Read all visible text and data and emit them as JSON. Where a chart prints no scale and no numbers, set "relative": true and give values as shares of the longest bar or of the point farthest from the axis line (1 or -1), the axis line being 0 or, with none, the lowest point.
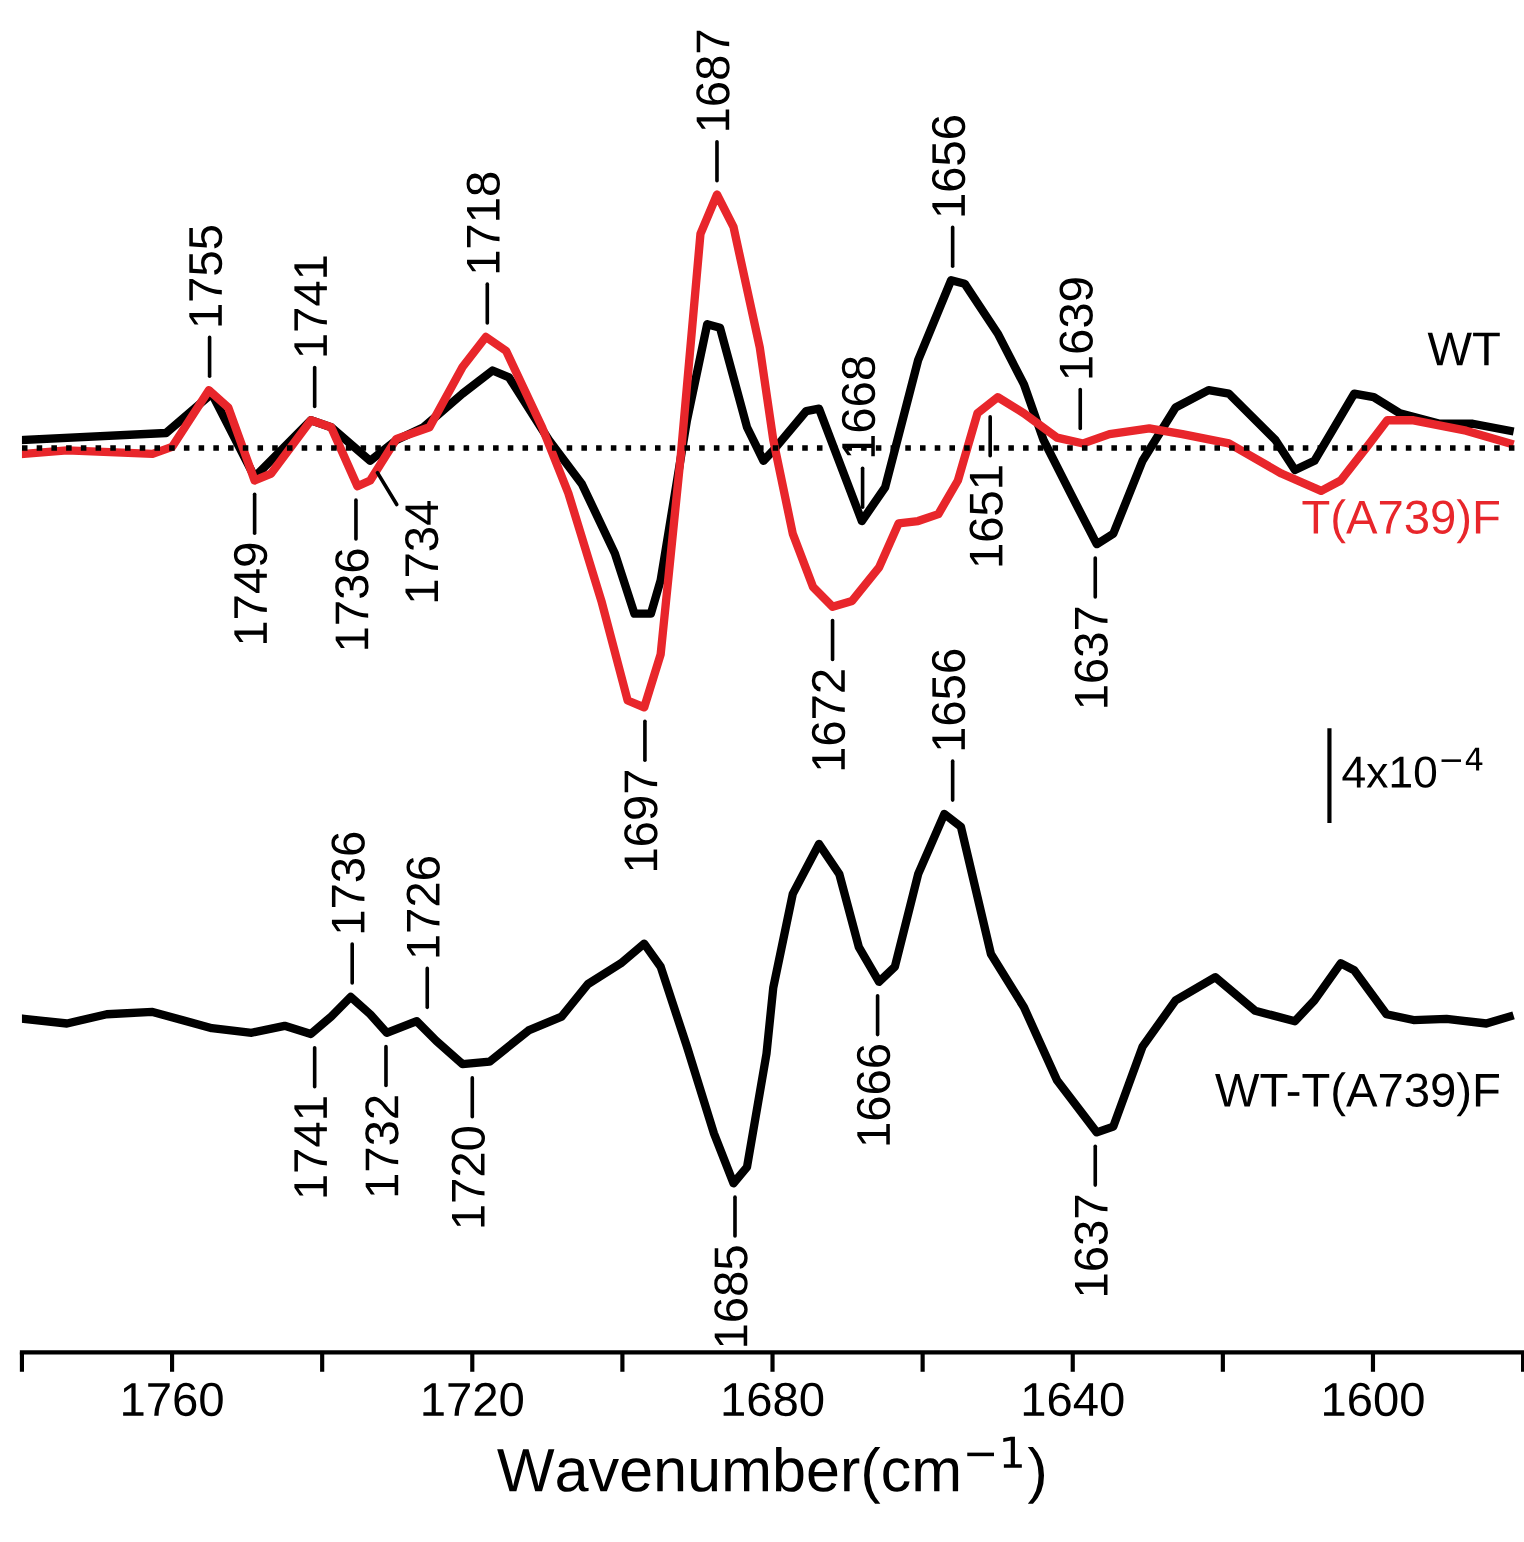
{
  "chart_data": {
    "type": "line",
    "relative": true,
    "xlabel": "Wavenumber(cm$^{−1}$)",
    "xlim": [
      1780,
      1580
    ],
    "xticks": [
      {
        "value": 1780,
        "label": null
      },
      1760,
      {
        "value": 1740,
        "label": null
      },
      1720,
      {
        "value": 1700,
        "label": null
      },
      1680,
      {
        "value": 1660,
        "label": null
      },
      1640,
      {
        "value": 1620,
        "label": null
      },
      1600,
      {
        "value": 1580,
        "label": null
      }
    ],
    "tick_labels": "x",
    "grid": false,
    "marker": "none",
    "line_style": "solid",
    "ref_lines": [
      {
        "axis": "y",
        "value": 0.781,
        "color": "#000000",
        "line_style": "dotted"
      }
    ],
    "series": [
      {
        "name": "WT",
        "color": "#000000",
        "x": [
          1779.7,
          1760.8,
          1754.7,
          1749.0,
          1741.5,
          1738.8,
          1733.6,
          1730.1,
          1726.5,
          1721.3,
          1717.3,
          1715.1,
          1709.8,
          1705.4,
          1701.0,
          1698.4,
          1696.2,
          1694.9,
          1691.4,
          1688.7,
          1687.0,
          1683.4,
          1681.2,
          1679.9,
          1675.5,
          1673.8,
          1668.1,
          1665.0,
          1660.6,
          1656.2,
          1654.4,
          1650.0,
          1646.5,
          1643.9,
          1640.3,
          1636.8,
          1634.6,
          1630.7,
          1626.3,
          1621.9,
          1619.2,
          1613.0,
          1610.4,
          1607.8,
          1602.5,
          1599.9,
          1596.4,
          1591.1,
          1586.7,
          1581.8
        ],
        "values": [
          0.788,
          0.794,
          0.828,
          0.756,
          0.805,
          0.799,
          0.77,
          0.788,
          0.799,
          0.828,
          0.848,
          0.842,
          0.788,
          0.75,
          0.69,
          0.638,
          0.638,
          0.667,
          0.805,
          0.888,
          0.885,
          0.799,
          0.77,
          0.779,
          0.813,
          0.815,
          0.718,
          0.747,
          0.857,
          0.926,
          0.923,
          0.88,
          0.836,
          0.788,
          0.742,
          0.698,
          0.707,
          0.77,
          0.816,
          0.831,
          0.828,
          0.788,
          0.762,
          0.77,
          0.828,
          0.825,
          0.811,
          0.802,
          0.802,
          0.796
        ]
      },
      {
        "name": "T(A739)F",
        "color": "#e8262b",
        "x": [
          1779.7,
          1774.0,
          1762.6,
          1760.0,
          1755.1,
          1752.5,
          1749.0,
          1746.8,
          1741.5,
          1738.8,
          1735.3,
          1733.6,
          1730.1,
          1725.7,
          1721.3,
          1718.2,
          1715.5,
          1710.7,
          1707.2,
          1702.8,
          1699.3,
          1697.1,
          1694.9,
          1692.2,
          1689.6,
          1687.4,
          1685.2,
          1681.7,
          1679.9,
          1677.3,
          1674.6,
          1672.0,
          1669.4,
          1665.8,
          1663.2,
          1660.6,
          1657.9,
          1655.3,
          1652.7,
          1650.0,
          1646.5,
          1642.1,
          1638.6,
          1635.1,
          1629.8,
          1625.4,
          1619.2,
          1612.2,
          1606.9,
          1604.3,
          1600.8,
          1598.1,
          1594.6,
          1587.6,
          1581.8
        ],
        "values": [
          0.776,
          0.779,
          0.776,
          0.782,
          0.831,
          0.816,
          0.753,
          0.759,
          0.805,
          0.799,
          0.748,
          0.753,
          0.789,
          0.799,
          0.851,
          0.877,
          0.865,
          0.799,
          0.742,
          0.649,
          0.563,
          0.557,
          0.603,
          0.776,
          0.966,
          1.0,
          0.972,
          0.868,
          0.788,
          0.707,
          0.661,
          0.644,
          0.649,
          0.678,
          0.716,
          0.718,
          0.724,
          0.753,
          0.811,
          0.825,
          0.811,
          0.79,
          0.785,
          0.793,
          0.798,
          0.793,
          0.785,
          0.759,
          0.744,
          0.753,
          0.782,
          0.805,
          0.805,
          0.796,
          0.785
        ]
      },
      {
        "name": "WT-T(A739)F",
        "color": "#000000",
        "x": [
          1779.7,
          1774.0,
          1768.7,
          1762.6,
          1754.7,
          1749.4,
          1745.0,
          1741.5,
          1738.8,
          1736.2,
          1733.6,
          1731.4,
          1727.4,
          1724.8,
          1721.3,
          1717.7,
          1712.5,
          1708.1,
          1704.6,
          1700.2,
          1697.1,
          1694.9,
          1691.4,
          1687.8,
          1685.2,
          1683.4,
          1680.8,
          1679.9,
          1677.3,
          1673.8,
          1671.1,
          1668.5,
          1665.8,
          1663.7,
          1660.6,
          1657.1,
          1654.9,
          1650.9,
          1646.5,
          1642.1,
          1636.8,
          1634.6,
          1630.7,
          1626.3,
          1621.0,
          1615.7,
          1610.4,
          1607.8,
          1604.3,
          1602.5,
          1598.2,
          1594.6,
          1590.2,
          1584.9,
          1581.8
        ],
        "values": [
          0.288,
          0.284,
          0.292,
          0.294,
          0.28,
          0.276,
          0.282,
          0.275,
          0.29,
          0.307,
          0.292,
          0.276,
          0.286,
          0.269,
          0.249,
          0.251,
          0.278,
          0.29,
          0.318,
          0.336,
          0.353,
          0.333,
          0.264,
          0.189,
          0.146,
          0.16,
          0.258,
          0.315,
          0.396,
          0.439,
          0.413,
          0.35,
          0.32,
          0.333,
          0.413,
          0.465,
          0.454,
          0.344,
          0.298,
          0.235,
          0.19,
          0.195,
          0.264,
          0.304,
          0.324,
          0.295,
          0.286,
          0.304,
          0.336,
          0.33,
          0.292,
          0.287,
          0.288,
          0.284,
          0.29
        ]
      }
    ],
    "annotations": [
      {
        "text": "1755",
        "x": 1755,
        "y": 0.831
      },
      {
        "text": "1741",
        "x": 1741,
        "y": 0.805
      },
      {
        "text": "1718",
        "x": 1718,
        "y": 0.877
      },
      {
        "text": "1749",
        "x": 1749,
        "y": 0.753
      },
      {
        "text": "1736",
        "x": 1735.5,
        "y": 0.748
      },
      {
        "text": "1734",
        "x": 1733.6,
        "y": 0.77
      },
      {
        "text": "1687",
        "x": 1687.4,
        "y": 1.0
      },
      {
        "text": "1656",
        "x": 1656,
        "y": 0.926
      },
      {
        "text": "1668",
        "x": 1668,
        "y": 0.718
      },
      {
        "text": "1639",
        "x": 1639,
        "y": 0.786
      },
      {
        "text": "1651",
        "x": 1651,
        "y": 0.82
      },
      {
        "text": "1637",
        "x": 1637,
        "y": 0.698
      },
      {
        "text": "1672",
        "x": 1672,
        "y": 0.644
      },
      {
        "text": "1656",
        "x": 1656,
        "y": 0.465
      },
      {
        "text": "1697",
        "x": 1697,
        "y": 0.557
      },
      {
        "text": "1736",
        "x": 1736,
        "y": 0.307
      },
      {
        "text": "1726",
        "x": 1726,
        "y": 0.286
      },
      {
        "text": "1741",
        "x": 1741,
        "y": 0.275
      },
      {
        "text": "1732",
        "x": 1731.5,
        "y": 0.276
      },
      {
        "text": "1720",
        "x": 1720,
        "y": 0.249
      },
      {
        "text": "1685",
        "x": 1685,
        "y": 0.146
      },
      {
        "text": "1666",
        "x": 1666,
        "y": 0.32
      },
      {
        "text": "1637",
        "x": 1637,
        "y": 0.19
      },
      "4x10$^{−4}$"
    ]
  }
}
